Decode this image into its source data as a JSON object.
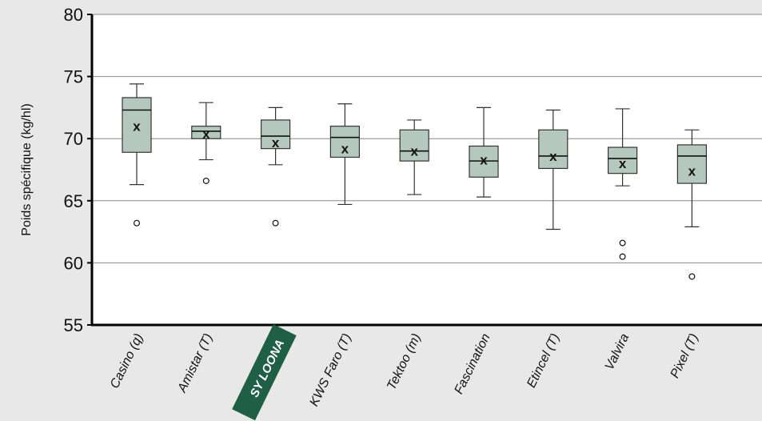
{
  "chart_data": {
    "type": "box",
    "ylabel": "Poids spécifique (kg/hl)",
    "ylim": [
      55,
      80
    ],
    "yticks": [
      55,
      60,
      65,
      70,
      75,
      80
    ],
    "grid": true,
    "highlight_category": "SY LOONA",
    "colors": {
      "background": "#e8e8e8",
      "plot_area": "#ffffff",
      "box_fill": "#b4c8c0",
      "box_stroke": "#333333",
      "highlight": "#1f5e47",
      "grid": "#888888"
    },
    "mean_marker": "x",
    "categories": [
      "Casino (q)",
      "Amistar (T)",
      "SY LOONA",
      "KWS Faro (T)",
      "Tektoo (m)",
      "Fascination",
      "Etincel (T)",
      "Valvira",
      "Pixel (T)"
    ],
    "boxes": [
      {
        "min": 66.3,
        "q1": 68.9,
        "median": 72.3,
        "q3": 73.3,
        "max": 74.4,
        "mean": 71.0,
        "outliers": [
          63.2
        ]
      },
      {
        "min": 68.3,
        "q1": 70.0,
        "median": 70.6,
        "q3": 71.0,
        "max": 72.9,
        "mean": 70.4,
        "outliers": [
          66.6
        ]
      },
      {
        "min": 67.9,
        "q1": 69.2,
        "median": 70.2,
        "q3": 71.5,
        "max": 72.5,
        "mean": 69.7,
        "outliers": [
          63.2
        ]
      },
      {
        "min": 64.7,
        "q1": 68.5,
        "median": 70.1,
        "q3": 71.0,
        "max": 72.8,
        "mean": 69.2,
        "outliers": []
      },
      {
        "min": 65.5,
        "q1": 68.2,
        "median": 69.0,
        "q3": 70.7,
        "max": 71.5,
        "mean": 69.0,
        "outliers": []
      },
      {
        "min": 65.3,
        "q1": 66.9,
        "median": 68.2,
        "q3": 69.4,
        "max": 72.5,
        "mean": 68.3,
        "outliers": []
      },
      {
        "min": 62.7,
        "q1": 67.6,
        "median": 68.6,
        "q3": 70.7,
        "max": 72.3,
        "mean": 68.6,
        "outliers": []
      },
      {
        "min": 66.2,
        "q1": 67.2,
        "median": 68.4,
        "q3": 69.3,
        "max": 72.4,
        "mean": 68.0,
        "outliers": [
          61.6,
          60.5
        ]
      },
      {
        "min": 62.9,
        "q1": 66.4,
        "median": 68.6,
        "q3": 69.5,
        "max": 70.7,
        "mean": 67.4,
        "outliers": [
          58.9
        ]
      }
    ]
  }
}
